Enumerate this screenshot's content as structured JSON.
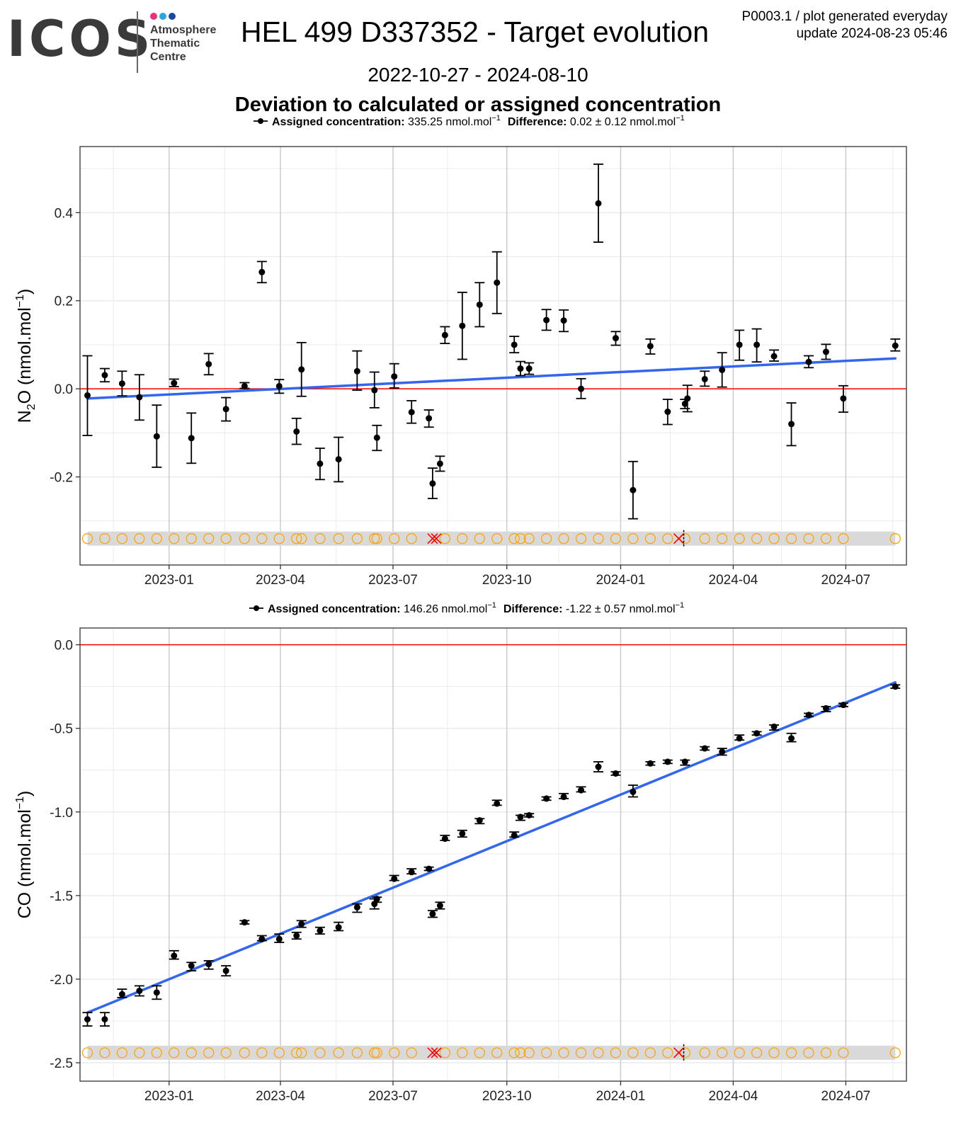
{
  "header": {
    "logo_text": "ICOS",
    "logo_sub": [
      "Atmosphere",
      "Thematic",
      "Centre"
    ],
    "logo_colors": [
      "#e6337a",
      "#2aa6dc",
      "#1a4aa0"
    ],
    "title": "HEL 499 D337352 - Target evolution",
    "corner_line1": "P0003.1 / plot generated everyday",
    "corner_line2": "update  2024-08-23 05:46",
    "period": "2022-10-27 - 2024-08-10",
    "subtitle": "Deviation to calculated or assigned concentration"
  },
  "colors": {
    "points": "#000000",
    "trend": "#3366ee",
    "zero_line": "#ff0000",
    "status_circle": "#ffa500",
    "status_cross": "#ff0000",
    "status_band": "#d9d9d9",
    "grid_major": "#cccccc",
    "grid_minor": "#ebebeb"
  },
  "chart_data": [
    {
      "type": "scatter",
      "gas": "N2O",
      "ylabel_main": "N",
      "ylabel_sub": "2",
      "ylabel_rest": "O (nmol.mol",
      "ylabel_sup": "−1",
      "ylabel_close": ")",
      "legend": {
        "label": "Assigned concentration:",
        "value": "335.25 nmol.mol",
        "value_sup": "−1",
        "diff_label": "Difference:",
        "diff_value": "0.02 ± 0.12 nmol.mol",
        "diff_sup": "−1"
      },
      "x_ticks": [
        "2023-01",
        "2023-04",
        "2023-07",
        "2023-10",
        "2024-01",
        "2024-04",
        "2024-07"
      ],
      "y_ticks": [
        "0.4",
        "0.2",
        "0.0",
        "-0.2"
      ],
      "y_tick_values": [
        0.4,
        0.2,
        0.0,
        -0.2
      ],
      "xlim": [
        "2022-10-21",
        "2024-08-19"
      ],
      "ylim": [
        -0.4,
        0.55
      ],
      "zero_line": 0,
      "trend": {
        "x": [
          "2022-10-27",
          "2024-08-10"
        ],
        "y": [
          -0.022,
          0.069
        ]
      },
      "status_y": -0.34,
      "points": [
        {
          "x": "2022-10-27",
          "y": -0.015,
          "lo": -0.106,
          "hi": 0.075
        },
        {
          "x": "2022-11-10",
          "y": 0.031,
          "lo": 0.016,
          "hi": 0.046
        },
        {
          "x": "2022-11-24",
          "y": 0.012,
          "lo": -0.016,
          "hi": 0.04
        },
        {
          "x": "2022-12-08",
          "y": -0.019,
          "lo": -0.071,
          "hi": 0.032
        },
        {
          "x": "2022-12-22",
          "y": -0.108,
          "lo": -0.178,
          "hi": -0.037
        },
        {
          "x": "2023-01-05",
          "y": 0.013,
          "lo": 0.005,
          "hi": 0.022
        },
        {
          "x": "2023-01-19",
          "y": -0.112,
          "lo": -0.169,
          "hi": -0.055
        },
        {
          "x": "2023-02-02",
          "y": 0.056,
          "lo": 0.032,
          "hi": 0.08
        },
        {
          "x": "2023-02-16",
          "y": -0.046,
          "lo": -0.073,
          "hi": -0.02
        },
        {
          "x": "2023-03-03",
          "y": 0.006,
          "lo": 0.001,
          "hi": 0.014
        },
        {
          "x": "2023-03-17",
          "y": 0.265,
          "lo": 0.241,
          "hi": 0.289
        },
        {
          "x": "2023-03-31",
          "y": 0.006,
          "lo": -0.01,
          "hi": 0.021
        },
        {
          "x": "2023-04-14",
          "y": -0.097,
          "lo": -0.126,
          "hi": -0.067
        },
        {
          "x": "2023-04-18",
          "y": 0.044,
          "lo": -0.017,
          "hi": 0.105
        },
        {
          "x": "2023-05-03",
          "y": -0.17,
          "lo": -0.206,
          "hi": -0.135
        },
        {
          "x": "2023-05-18",
          "y": -0.16,
          "lo": -0.211,
          "hi": -0.11
        },
        {
          "x": "2023-06-02",
          "y": 0.04,
          "lo": -0.003,
          "hi": 0.086
        },
        {
          "x": "2023-06-16",
          "y": -0.003,
          "lo": -0.043,
          "hi": 0.038
        },
        {
          "x": "2023-06-18",
          "y": -0.111,
          "lo": -0.14,
          "hi": -0.083
        },
        {
          "x": "2023-07-02",
          "y": 0.028,
          "lo": 0.002,
          "hi": 0.057
        },
        {
          "x": "2023-07-16",
          "y": -0.053,
          "lo": -0.078,
          "hi": -0.027
        },
        {
          "x": "2023-07-30",
          "y": -0.067,
          "lo": -0.087,
          "hi": -0.048
        },
        {
          "x": "2023-08-02",
          "y": -0.215,
          "lo": -0.249,
          "hi": -0.18
        },
        {
          "x": "2023-08-08",
          "y": -0.17,
          "lo": -0.187,
          "hi": -0.153
        },
        {
          "x": "2023-08-12",
          "y": 0.122,
          "lo": 0.103,
          "hi": 0.141
        },
        {
          "x": "2023-08-26",
          "y": 0.143,
          "lo": 0.067,
          "hi": 0.219
        },
        {
          "x": "2023-09-09",
          "y": 0.191,
          "lo": 0.141,
          "hi": 0.241
        },
        {
          "x": "2023-09-23",
          "y": 0.241,
          "lo": 0.171,
          "hi": 0.311
        },
        {
          "x": "2023-10-07",
          "y": 0.1,
          "lo": 0.082,
          "hi": 0.119
        },
        {
          "x": "2023-10-12",
          "y": 0.046,
          "lo": 0.03,
          "hi": 0.062
        },
        {
          "x": "2023-10-19",
          "y": 0.046,
          "lo": 0.033,
          "hi": 0.059
        },
        {
          "x": "2023-11-02",
          "y": 0.156,
          "lo": 0.133,
          "hi": 0.18
        },
        {
          "x": "2023-11-16",
          "y": 0.155,
          "lo": 0.13,
          "hi": 0.179
        },
        {
          "x": "2023-11-30",
          "y": 0.0,
          "lo": -0.022,
          "hi": 0.023
        },
        {
          "x": "2023-12-14",
          "y": 0.421,
          "lo": 0.333,
          "hi": 0.51
        },
        {
          "x": "2023-12-28",
          "y": 0.115,
          "lo": 0.099,
          "hi": 0.13
        },
        {
          "x": "2024-01-11",
          "y": -0.23,
          "lo": -0.295,
          "hi": -0.165
        },
        {
          "x": "2024-01-25",
          "y": 0.097,
          "lo": 0.079,
          "hi": 0.113
        },
        {
          "x": "2024-02-08",
          "y": -0.052,
          "lo": -0.081,
          "hi": -0.024
        },
        {
          "x": "2024-02-22",
          "y": -0.034,
          "lo": -0.045,
          "hi": -0.024
        },
        {
          "x": "2024-02-24",
          "y": -0.022,
          "lo": -0.052,
          "hi": 0.008
        },
        {
          "x": "2024-03-09",
          "y": 0.022,
          "lo": 0.006,
          "hi": 0.04
        },
        {
          "x": "2024-03-23",
          "y": 0.043,
          "lo": 0.004,
          "hi": 0.082
        },
        {
          "x": "2024-04-06",
          "y": 0.1,
          "lo": 0.065,
          "hi": 0.133
        },
        {
          "x": "2024-04-20",
          "y": 0.1,
          "lo": 0.061,
          "hi": 0.136
        },
        {
          "x": "2024-05-04",
          "y": 0.074,
          "lo": 0.063,
          "hi": 0.088
        },
        {
          "x": "2024-05-18",
          "y": -0.08,
          "lo": -0.129,
          "hi": -0.032
        },
        {
          "x": "2024-06-01",
          "y": 0.061,
          "lo": 0.048,
          "hi": 0.075
        },
        {
          "x": "2024-06-15",
          "y": 0.084,
          "lo": 0.067,
          "hi": 0.101
        },
        {
          "x": "2024-06-29",
          "y": -0.022,
          "lo": -0.053,
          "hi": 0.007
        },
        {
          "x": "2024-08-10",
          "y": 0.098,
          "lo": 0.086,
          "hi": 0.113
        }
      ],
      "status_circles": [
        "2022-10-27",
        "2022-11-10",
        "2022-11-24",
        "2022-12-08",
        "2022-12-22",
        "2023-01-05",
        "2023-01-19",
        "2023-02-02",
        "2023-02-16",
        "2023-03-03",
        "2023-03-17",
        "2023-03-31",
        "2023-04-14",
        "2023-04-18",
        "2023-05-03",
        "2023-05-18",
        "2023-06-02",
        "2023-06-16",
        "2023-06-18",
        "2023-07-02",
        "2023-07-16",
        "2023-08-12",
        "2023-08-26",
        "2023-09-09",
        "2023-09-23",
        "2023-10-07",
        "2023-10-12",
        "2023-10-19",
        "2023-11-02",
        "2023-11-16",
        "2023-11-30",
        "2023-12-14",
        "2023-12-28",
        "2024-01-11",
        "2024-01-25",
        "2024-02-08",
        "2024-02-22",
        "2024-03-09",
        "2024-03-23",
        "2024-04-06",
        "2024-04-20",
        "2024-05-04",
        "2024-05-18",
        "2024-06-01",
        "2024-06-15",
        "2024-06-29",
        "2024-08-10"
      ],
      "status_crosses": [
        "2023-08-02",
        "2023-08-05",
        "2024-02-17"
      ],
      "dashed_mark": "2024-02-21"
    },
    {
      "type": "scatter",
      "gas": "CO",
      "ylabel_main": "CO",
      "ylabel_sub": "",
      "ylabel_rest": " (nmol.mol",
      "ylabel_sup": "−1",
      "ylabel_close": ")",
      "legend": {
        "label": "Assigned concentration:",
        "value": "146.26 nmol.mol",
        "value_sup": "−1",
        "diff_label": "Difference:",
        "diff_value": "-1.22 ± 0.57 nmol.mol",
        "diff_sup": "−1"
      },
      "x_ticks": [
        "2023-01",
        "2023-04",
        "2023-07",
        "2023-10",
        "2024-01",
        "2024-04",
        "2024-07"
      ],
      "y_ticks": [
        "0.0",
        "-0.5",
        "-1.0",
        "-1.5",
        "-2.0",
        "-2.5"
      ],
      "y_tick_values": [
        0.0,
        -0.5,
        -1.0,
        -1.5,
        -2.0,
        -2.5
      ],
      "xlim": [
        "2022-10-21",
        "2024-08-19"
      ],
      "ylim": [
        -2.61,
        0.1
      ],
      "zero_line": 0,
      "trend": {
        "x": [
          "2022-10-27",
          "2024-08-10"
        ],
        "y": [
          -2.2,
          -0.225
        ]
      },
      "status_y": -2.44,
      "points": [
        {
          "x": "2022-10-27",
          "y": -2.24,
          "lo": -2.28,
          "hi": -2.2
        },
        {
          "x": "2022-11-10",
          "y": -2.24,
          "lo": -2.28,
          "hi": -2.2
        },
        {
          "x": "2022-11-24",
          "y": -2.09,
          "lo": -2.11,
          "hi": -2.06
        },
        {
          "x": "2022-12-08",
          "y": -2.07,
          "lo": -2.1,
          "hi": -2.04
        },
        {
          "x": "2022-12-22",
          "y": -2.08,
          "lo": -2.12,
          "hi": -2.04
        },
        {
          "x": "2023-01-05",
          "y": -1.86,
          "lo": -1.88,
          "hi": -1.83
        },
        {
          "x": "2023-01-19",
          "y": -1.92,
          "lo": -1.95,
          "hi": -1.9
        },
        {
          "x": "2023-02-02",
          "y": -1.91,
          "lo": -1.94,
          "hi": -1.89
        },
        {
          "x": "2023-02-16",
          "y": -1.95,
          "lo": -1.98,
          "hi": -1.92
        },
        {
          "x": "2023-03-03",
          "y": -1.66,
          "lo": -1.67,
          "hi": -1.65
        },
        {
          "x": "2023-03-17",
          "y": -1.76,
          "lo": -1.77,
          "hi": -1.74
        },
        {
          "x": "2023-03-31",
          "y": -1.76,
          "lo": -1.78,
          "hi": -1.73
        },
        {
          "x": "2023-04-14",
          "y": -1.74,
          "lo": -1.76,
          "hi": -1.72
        },
        {
          "x": "2023-04-18",
          "y": -1.67,
          "lo": -1.69,
          "hi": -1.65
        },
        {
          "x": "2023-05-03",
          "y": -1.71,
          "lo": -1.73,
          "hi": -1.69
        },
        {
          "x": "2023-05-18",
          "y": -1.69,
          "lo": -1.71,
          "hi": -1.66
        },
        {
          "x": "2023-06-02",
          "y": -1.57,
          "lo": -1.6,
          "hi": -1.55
        },
        {
          "x": "2023-06-16",
          "y": -1.55,
          "lo": -1.58,
          "hi": -1.52
        },
        {
          "x": "2023-06-18",
          "y": -1.52,
          "lo": -1.54,
          "hi": -1.51
        },
        {
          "x": "2023-07-02",
          "y": -1.4,
          "lo": -1.41,
          "hi": -1.38
        },
        {
          "x": "2023-07-16",
          "y": -1.36,
          "lo": -1.37,
          "hi": -1.34
        },
        {
          "x": "2023-07-30",
          "y": -1.34,
          "lo": -1.35,
          "hi": -1.33
        },
        {
          "x": "2023-08-02",
          "y": -1.61,
          "lo": -1.63,
          "hi": -1.59
        },
        {
          "x": "2023-08-08",
          "y": -1.56,
          "lo": -1.58,
          "hi": -1.54
        },
        {
          "x": "2023-08-12",
          "y": -1.16,
          "lo": -1.17,
          "hi": -1.14
        },
        {
          "x": "2023-08-26",
          "y": -1.13,
          "lo": -1.15,
          "hi": -1.11
        },
        {
          "x": "2023-09-09",
          "y": -1.05,
          "lo": -1.07,
          "hi": -1.04
        },
        {
          "x": "2023-09-23",
          "y": -0.95,
          "lo": -0.96,
          "hi": -0.93
        },
        {
          "x": "2023-10-07",
          "y": -1.14,
          "lo": -1.15,
          "hi": -1.12
        },
        {
          "x": "2023-10-12",
          "y": -1.03,
          "lo": -1.05,
          "hi": -1.02
        },
        {
          "x": "2023-10-19",
          "y": -1.02,
          "lo": -1.03,
          "hi": -1.01
        },
        {
          "x": "2023-11-02",
          "y": -0.92,
          "lo": -0.93,
          "hi": -0.91
        },
        {
          "x": "2023-11-16",
          "y": -0.91,
          "lo": -0.92,
          "hi": -0.89
        },
        {
          "x": "2023-11-30",
          "y": -0.87,
          "lo": -0.88,
          "hi": -0.85
        },
        {
          "x": "2023-12-14",
          "y": -0.73,
          "lo": -0.76,
          "hi": -0.7
        },
        {
          "x": "2023-12-28",
          "y": -0.77,
          "lo": -0.78,
          "hi": -0.76
        },
        {
          "x": "2024-01-11",
          "y": -0.88,
          "lo": -0.91,
          "hi": -0.84
        },
        {
          "x": "2024-01-25",
          "y": -0.71,
          "lo": -0.72,
          "hi": -0.7
        },
        {
          "x": "2024-02-08",
          "y": -0.7,
          "lo": -0.71,
          "hi": -0.69
        },
        {
          "x": "2024-02-22",
          "y": -0.7,
          "lo": -0.72,
          "hi": -0.69
        },
        {
          "x": "2024-03-09",
          "y": -0.62,
          "lo": -0.63,
          "hi": -0.61
        },
        {
          "x": "2024-03-23",
          "y": -0.64,
          "lo": -0.66,
          "hi": -0.62
        },
        {
          "x": "2024-04-06",
          "y": -0.56,
          "lo": -0.57,
          "hi": -0.54
        },
        {
          "x": "2024-04-20",
          "y": -0.53,
          "lo": -0.54,
          "hi": -0.52
        },
        {
          "x": "2024-05-04",
          "y": -0.49,
          "lo": -0.51,
          "hi": -0.48
        },
        {
          "x": "2024-05-18",
          "y": -0.56,
          "lo": -0.58,
          "hi": -0.53
        },
        {
          "x": "2024-06-01",
          "y": -0.42,
          "lo": -0.43,
          "hi": -0.41
        },
        {
          "x": "2024-06-15",
          "y": -0.38,
          "lo": -0.4,
          "hi": -0.37
        },
        {
          "x": "2024-06-29",
          "y": -0.36,
          "lo": -0.37,
          "hi": -0.35
        },
        {
          "x": "2024-08-10",
          "y": -0.25,
          "lo": -0.26,
          "hi": -0.24
        }
      ],
      "status_circles": [
        "2022-10-27",
        "2022-11-10",
        "2022-11-24",
        "2022-12-08",
        "2022-12-22",
        "2023-01-05",
        "2023-01-19",
        "2023-02-02",
        "2023-02-16",
        "2023-03-03",
        "2023-03-17",
        "2023-03-31",
        "2023-04-14",
        "2023-04-18",
        "2023-05-03",
        "2023-05-18",
        "2023-06-02",
        "2023-06-16",
        "2023-06-18",
        "2023-07-02",
        "2023-07-16",
        "2023-08-12",
        "2023-08-26",
        "2023-09-09",
        "2023-09-23",
        "2023-10-07",
        "2023-10-12",
        "2023-10-19",
        "2023-11-02",
        "2023-11-16",
        "2023-11-30",
        "2023-12-14",
        "2023-12-28",
        "2024-01-11",
        "2024-01-25",
        "2024-02-08",
        "2024-02-22",
        "2024-03-09",
        "2024-03-23",
        "2024-04-06",
        "2024-04-20",
        "2024-05-04",
        "2024-05-18",
        "2024-06-01",
        "2024-06-15",
        "2024-06-29",
        "2024-08-10"
      ],
      "status_crosses": [
        "2023-08-02",
        "2023-08-05",
        "2024-02-17"
      ],
      "dashed_mark": "2024-02-21"
    }
  ]
}
